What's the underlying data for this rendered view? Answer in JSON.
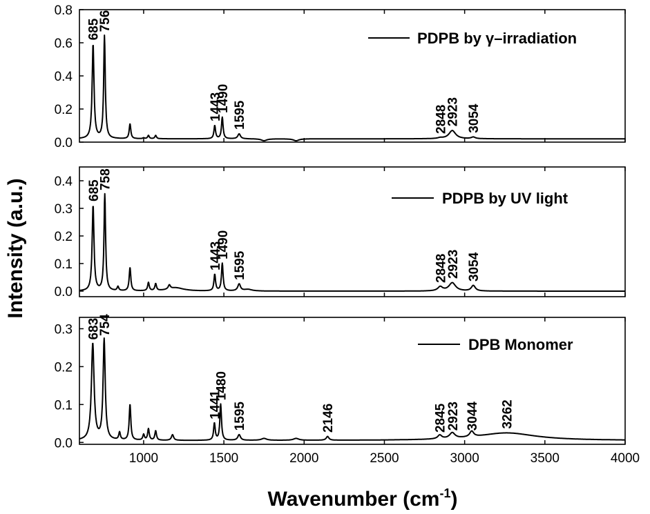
{
  "chart_data": {
    "type": "line",
    "xlabel": "Wavenumber (cm",
    "xlabel_sup": "-1",
    "xlabel_close": ")",
    "ylabel": "Intensity (a.u.)",
    "xlim": [
      600,
      4000
    ],
    "xticks": [
      1000,
      1500,
      2000,
      2500,
      3000,
      3500,
      4000
    ],
    "grid": false,
    "panels": [
      {
        "legend": "PDPB by γ–irradiation",
        "legend_position": "top-right",
        "ylim": [
          0,
          0.8
        ],
        "yticks": [
          0.0,
          0.2,
          0.4,
          0.6,
          0.8
        ],
        "tick_labels": [
          "0.0",
          "0.2",
          "0.4",
          "0.6",
          "0.8"
        ],
        "baseline": 0.02,
        "peaks": [
          {
            "x": 685,
            "y": 0.59,
            "w": 7,
            "label": "685"
          },
          {
            "x": 756,
            "y": 0.64,
            "w": 6,
            "label": "756"
          },
          {
            "x": 840,
            "y": 0.02,
            "w": 6
          },
          {
            "x": 915,
            "y": 0.11,
            "w": 6
          },
          {
            "x": 1000,
            "y": 0.025,
            "w": 6
          },
          {
            "x": 1030,
            "y": 0.04,
            "w": 6
          },
          {
            "x": 1075,
            "y": 0.04,
            "w": 6
          },
          {
            "x": 1160,
            "y": 0.02,
            "w": 8
          },
          {
            "x": 1185,
            "y": 0.02,
            "w": 8
          },
          {
            "x": 1443,
            "y": 0.1,
            "w": 6,
            "label": "1443"
          },
          {
            "x": 1490,
            "y": 0.15,
            "w": 6,
            "label": "1490"
          },
          {
            "x": 1595,
            "y": 0.05,
            "w": 10,
            "label": "1595"
          },
          {
            "x": 1750,
            "y": 0.008,
            "w": 20
          },
          {
            "x": 1950,
            "y": 0.008,
            "w": 20
          },
          {
            "x": 2848,
            "y": 0.025,
            "w": 18,
            "label": "2848"
          },
          {
            "x": 2923,
            "y": 0.07,
            "w": 25,
            "label": "2923"
          },
          {
            "x": 3054,
            "y": 0.03,
            "w": 15,
            "label": "3054"
          }
        ]
      },
      {
        "legend": "PDPB by UV light",
        "legend_position": "top-right",
        "ylim": [
          -0.02,
          0.45
        ],
        "yticks": [
          0.0,
          0.1,
          0.2,
          0.3,
          0.4
        ],
        "tick_labels": [
          "0.0",
          "0.1",
          "0.2",
          "0.3",
          "0.4"
        ],
        "baseline": 0.0,
        "peaks": [
          {
            "x": 685,
            "y": 0.31,
            "w": 7,
            "label": "685"
          },
          {
            "x": 758,
            "y": 0.35,
            "w": 6,
            "label": "758"
          },
          {
            "x": 840,
            "y": 0.015,
            "w": 6
          },
          {
            "x": 915,
            "y": 0.085,
            "w": 6
          },
          {
            "x": 1030,
            "y": 0.03,
            "w": 6
          },
          {
            "x": 1075,
            "y": 0.025,
            "w": 6
          },
          {
            "x": 1160,
            "y": 0.015,
            "w": 8
          },
          {
            "x": 1200,
            "y": 0.012,
            "w": 60
          },
          {
            "x": 1443,
            "y": 0.06,
            "w": 6,
            "label": "1443"
          },
          {
            "x": 1490,
            "y": 0.1,
            "w": 6,
            "label": "1490"
          },
          {
            "x": 1595,
            "y": 0.025,
            "w": 10,
            "label": "1595"
          },
          {
            "x": 1650,
            "y": 0.006,
            "w": 30
          },
          {
            "x": 2848,
            "y": 0.015,
            "w": 18,
            "label": "2848"
          },
          {
            "x": 2923,
            "y": 0.03,
            "w": 25,
            "label": "2923"
          },
          {
            "x": 3054,
            "y": 0.02,
            "w": 15,
            "label": "3054"
          }
        ]
      },
      {
        "legend": "DPB Monomer",
        "legend_position": "top-right",
        "ylim": [
          -0.005,
          0.33
        ],
        "yticks": [
          0.0,
          0.1,
          0.2,
          0.3
        ],
        "tick_labels": [
          "0.0",
          "0.1",
          "0.2",
          "0.3"
        ],
        "baseline": 0.005,
        "peaks": [
          {
            "x": 683,
            "y": 0.26,
            "w": 10,
            "label": "683"
          },
          {
            "x": 754,
            "y": 0.27,
            "w": 8,
            "label": "754"
          },
          {
            "x": 850,
            "y": 0.025,
            "w": 6
          },
          {
            "x": 915,
            "y": 0.1,
            "w": 6
          },
          {
            "x": 1000,
            "y": 0.02,
            "w": 6
          },
          {
            "x": 1030,
            "y": 0.035,
            "w": 6
          },
          {
            "x": 1075,
            "y": 0.03,
            "w": 6
          },
          {
            "x": 1180,
            "y": 0.02,
            "w": 8
          },
          {
            "x": 1441,
            "y": 0.05,
            "w": 6,
            "label": "1441"
          },
          {
            "x": 1480,
            "y": 0.1,
            "w": 6,
            "label": "1480"
          },
          {
            "x": 1595,
            "y": 0.02,
            "w": 10,
            "label": "1595"
          },
          {
            "x": 1750,
            "y": 0.01,
            "w": 20
          },
          {
            "x": 1950,
            "y": 0.01,
            "w": 20
          },
          {
            "x": 2146,
            "y": 0.015,
            "w": 10,
            "label": "2146"
          },
          {
            "x": 2845,
            "y": 0.015,
            "w": 15,
            "label": "2845"
          },
          {
            "x": 2923,
            "y": 0.02,
            "w": 20,
            "label": "2923"
          },
          {
            "x": 3044,
            "y": 0.02,
            "w": 15,
            "label": "3044"
          },
          {
            "x": 3262,
            "y": 0.025,
            "w": 220,
            "label": "3262"
          }
        ]
      }
    ]
  }
}
